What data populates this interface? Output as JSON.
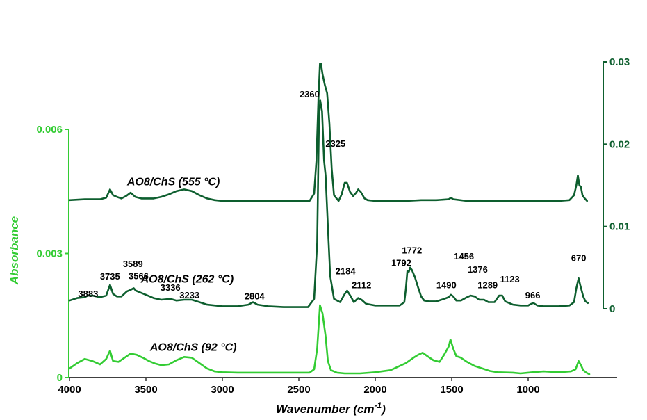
{
  "colors": {
    "light": "#33cc33",
    "dark": "#0d5e2e"
  },
  "chart_data": {
    "type": "line",
    "xlabel_main": "Wavenumber (cm",
    "xlabel_sup": "-1",
    "xlabel_end": ")",
    "ylabel": "Absorbance",
    "xlim": [
      4000,
      600
    ],
    "x_reversed": true,
    "x_ticks": [
      "4000",
      "3500",
      "3000",
      "2500",
      "2000",
      "1500",
      "1000"
    ],
    "left_axis": {
      "range": [
        0,
        0.006
      ],
      "ticks": [
        "0",
        "0.003",
        "0.006"
      ],
      "color": "light"
    },
    "right_axis": {
      "range": [
        0,
        0.03
      ],
      "ticks": [
        "0",
        "0.01",
        "0.02",
        "0.03"
      ],
      "color": "dark"
    },
    "series": [
      {
        "name": "AO8/ChS (92 °C)",
        "axis": "left",
        "color": "light",
        "points": [
          [
            4000,
            0.00022
          ],
          [
            3950,
            0.00035
          ],
          [
            3900,
            0.00045
          ],
          [
            3850,
            0.0004
          ],
          [
            3800,
            0.00032
          ],
          [
            3760,
            0.00045
          ],
          [
            3735,
            0.00065
          ],
          [
            3715,
            0.0004
          ],
          [
            3680,
            0.00038
          ],
          [
            3640,
            0.00048
          ],
          [
            3600,
            0.00058
          ],
          [
            3560,
            0.00055
          ],
          [
            3520,
            0.00048
          ],
          [
            3480,
            0.0004
          ],
          [
            3440,
            0.00034
          ],
          [
            3400,
            0.0003
          ],
          [
            3350,
            0.00032
          ],
          [
            3300,
            0.00042
          ],
          [
            3250,
            0.0005
          ],
          [
            3200,
            0.00048
          ],
          [
            3150,
            0.00035
          ],
          [
            3100,
            0.00022
          ],
          [
            3050,
            0.00015
          ],
          [
            3000,
            0.00013
          ],
          [
            2900,
            0.00012
          ],
          [
            2800,
            0.00012
          ],
          [
            2700,
            0.00012
          ],
          [
            2600,
            0.00012
          ],
          [
            2500,
            0.00012
          ],
          [
            2430,
            0.00012
          ],
          [
            2400,
            0.0002
          ],
          [
            2380,
            0.0007
          ],
          [
            2362,
            0.00175
          ],
          [
            2345,
            0.00155
          ],
          [
            2325,
            0.001
          ],
          [
            2310,
            0.0004
          ],
          [
            2290,
            0.00018
          ],
          [
            2250,
            0.00012
          ],
          [
            2200,
            0.0001
          ],
          [
            2100,
            0.0001
          ],
          [
            2000,
            0.00013
          ],
          [
            1900,
            0.00018
          ],
          [
            1800,
            0.00035
          ],
          [
            1750,
            0.00048
          ],
          [
            1720,
            0.00055
          ],
          [
            1690,
            0.0006
          ],
          [
            1660,
            0.00052
          ],
          [
            1620,
            0.00042
          ],
          [
            1580,
            0.00038
          ],
          [
            1550,
            0.00055
          ],
          [
            1520,
            0.00075
          ],
          [
            1508,
            0.00092
          ],
          [
            1490,
            0.0007
          ],
          [
            1470,
            0.00052
          ],
          [
            1440,
            0.00048
          ],
          [
            1400,
            0.00038
          ],
          [
            1350,
            0.00028
          ],
          [
            1300,
            0.00022
          ],
          [
            1250,
            0.00016
          ],
          [
            1200,
            0.00013
          ],
          [
            1100,
            0.00012
          ],
          [
            1050,
            0.0001
          ],
          [
            1000,
            0.00012
          ],
          [
            900,
            0.00015
          ],
          [
            800,
            0.00013
          ],
          [
            720,
            0.00015
          ],
          [
            690,
            0.0002
          ],
          [
            670,
            0.0004
          ],
          [
            655,
            0.0003
          ],
          [
            640,
            0.00018
          ],
          [
            620,
            0.00012
          ],
          [
            600,
            8e-05
          ]
        ]
      },
      {
        "name": "AO8/ChS (262 °C)",
        "axis": "right",
        "color": "dark",
        "points": [
          [
            4000,
            0.001
          ],
          [
            3950,
            0.0013
          ],
          [
            3900,
            0.0014
          ],
          [
            3880,
            0.0016
          ],
          [
            3850,
            0.0016
          ],
          [
            3800,
            0.0014
          ],
          [
            3760,
            0.0016
          ],
          [
            3735,
            0.0029
          ],
          [
            3715,
            0.0018
          ],
          [
            3690,
            0.0015
          ],
          [
            3660,
            0.0015
          ],
          [
            3625,
            0.0021
          ],
          [
            3600,
            0.0023
          ],
          [
            3580,
            0.0025
          ],
          [
            3566,
            0.0022
          ],
          [
            3540,
            0.002
          ],
          [
            3500,
            0.0017
          ],
          [
            3450,
            0.0013
          ],
          [
            3400,
            0.0011
          ],
          [
            3340,
            0.0012
          ],
          [
            3300,
            0.001
          ],
          [
            3250,
            0.0011
          ],
          [
            3200,
            0.0011
          ],
          [
            3150,
            0.0008
          ],
          [
            3100,
            0.0005
          ],
          [
            3000,
            0.0003
          ],
          [
            2900,
            0.0003
          ],
          [
            2830,
            0.0005
          ],
          [
            2800,
            0.0008
          ],
          [
            2770,
            0.0005
          ],
          [
            2700,
            0.0003
          ],
          [
            2600,
            0.0002
          ],
          [
            2500,
            0.0002
          ],
          [
            2440,
            0.0002
          ],
          [
            2400,
            0.0012
          ],
          [
            2380,
            0.008
          ],
          [
            2368,
            0.0232
          ],
          [
            2360,
            0.0253
          ],
          [
            2348,
            0.024
          ],
          [
            2335,
            0.018
          ],
          [
            2325,
            0.0162
          ],
          [
            2310,
            0.01
          ],
          [
            2295,
            0.004
          ],
          [
            2270,
            0.0012
          ],
          [
            2230,
            0.0008
          ],
          [
            2200,
            0.0018
          ],
          [
            2184,
            0.0022
          ],
          [
            2160,
            0.0015
          ],
          [
            2140,
            0.0008
          ],
          [
            2112,
            0.0013
          ],
          [
            2090,
            0.0011
          ],
          [
            2060,
            0.0006
          ],
          [
            2000,
            0.0004
          ],
          [
            1900,
            0.0004
          ],
          [
            1840,
            0.0004
          ],
          [
            1810,
            0.0008
          ],
          [
            1800,
            0.0024
          ],
          [
            1790,
            0.0046
          ],
          [
            1780,
            0.0045
          ],
          [
            1772,
            0.005
          ],
          [
            1760,
            0.0047
          ],
          [
            1740,
            0.0038
          ],
          [
            1720,
            0.0026
          ],
          [
            1700,
            0.0015
          ],
          [
            1680,
            0.001
          ],
          [
            1650,
            0.0009
          ],
          [
            1600,
            0.0009
          ],
          [
            1550,
            0.0012
          ],
          [
            1520,
            0.0014
          ],
          [
            1505,
            0.0017
          ],
          [
            1490,
            0.0015
          ],
          [
            1470,
            0.001
          ],
          [
            1440,
            0.001
          ],
          [
            1400,
            0.0014
          ],
          [
            1376,
            0.0016
          ],
          [
            1350,
            0.0015
          ],
          [
            1320,
            0.0011
          ],
          [
            1289,
            0.0011
          ],
          [
            1260,
            0.0008
          ],
          [
            1220,
            0.0008
          ],
          [
            1190,
            0.0016
          ],
          [
            1170,
            0.0016
          ],
          [
            1150,
            0.0009
          ],
          [
            1100,
            0.0005
          ],
          [
            1050,
            0.0004
          ],
          [
            1000,
            0.0004
          ],
          [
            980,
            0.0006
          ],
          [
            966,
            0.0007
          ],
          [
            940,
            0.0004
          ],
          [
            900,
            0.0003
          ],
          [
            800,
            0.0003
          ],
          [
            730,
            0.0004
          ],
          [
            700,
            0.0008
          ],
          [
            685,
            0.0025
          ],
          [
            670,
            0.0037
          ],
          [
            660,
            0.0029
          ],
          [
            650,
            0.0022
          ],
          [
            640,
            0.0015
          ],
          [
            625,
            0.0009
          ],
          [
            610,
            0.0007
          ]
        ]
      },
      {
        "name": "AO8/ChS (555 °C)",
        "axis": "right",
        "color": "dark",
        "points": [
          [
            4000,
            0.0132
          ],
          [
            3900,
            0.0133
          ],
          [
            3800,
            0.0133
          ],
          [
            3760,
            0.0135
          ],
          [
            3735,
            0.0145
          ],
          [
            3715,
            0.0138
          ],
          [
            3690,
            0.0136
          ],
          [
            3660,
            0.0134
          ],
          [
            3630,
            0.0137
          ],
          [
            3600,
            0.0141
          ],
          [
            3570,
            0.0136
          ],
          [
            3530,
            0.0134
          ],
          [
            3450,
            0.0134
          ],
          [
            3400,
            0.0136
          ],
          [
            3350,
            0.0139
          ],
          [
            3300,
            0.0143
          ],
          [
            3250,
            0.0145
          ],
          [
            3200,
            0.0143
          ],
          [
            3150,
            0.0138
          ],
          [
            3100,
            0.0134
          ],
          [
            3050,
            0.0132
          ],
          [
            3000,
            0.0131
          ],
          [
            2900,
            0.0131
          ],
          [
            2800,
            0.0131
          ],
          [
            2700,
            0.0131
          ],
          [
            2600,
            0.0131
          ],
          [
            2500,
            0.0131
          ],
          [
            2430,
            0.0131
          ],
          [
            2400,
            0.014
          ],
          [
            2385,
            0.018
          ],
          [
            2372,
            0.0255
          ],
          [
            2362,
            0.0298
          ],
          [
            2355,
            0.0298
          ],
          [
            2345,
            0.0285
          ],
          [
            2330,
            0.0272
          ],
          [
            2315,
            0.0262
          ],
          [
            2300,
            0.0225
          ],
          [
            2285,
            0.017
          ],
          [
            2270,
            0.0138
          ],
          [
            2240,
            0.0131
          ],
          [
            2220,
            0.0139
          ],
          [
            2200,
            0.0153
          ],
          [
            2185,
            0.0153
          ],
          [
            2165,
            0.0142
          ],
          [
            2145,
            0.0137
          ],
          [
            2125,
            0.0141
          ],
          [
            2112,
            0.0145
          ],
          [
            2095,
            0.0142
          ],
          [
            2070,
            0.0134
          ],
          [
            2050,
            0.0132
          ],
          [
            2000,
            0.0131
          ],
          [
            1900,
            0.0131
          ],
          [
            1800,
            0.0131
          ],
          [
            1700,
            0.0132
          ],
          [
            1600,
            0.0132
          ],
          [
            1520,
            0.0133
          ],
          [
            1505,
            0.0135
          ],
          [
            1490,
            0.0133
          ],
          [
            1400,
            0.0131
          ],
          [
            1300,
            0.0131
          ],
          [
            1200,
            0.0131
          ],
          [
            1100,
            0.0131
          ],
          [
            1000,
            0.0131
          ],
          [
            900,
            0.0131
          ],
          [
            800,
            0.0131
          ],
          [
            730,
            0.0132
          ],
          [
            700,
            0.0138
          ],
          [
            685,
            0.015
          ],
          [
            675,
            0.0162
          ],
          [
            665,
            0.015
          ],
          [
            655,
            0.0148
          ],
          [
            645,
            0.0138
          ],
          [
            630,
            0.0134
          ],
          [
            615,
            0.0131
          ]
        ]
      }
    ],
    "series_labels": [
      {
        "text": "AO8/ChS (555 °C)",
        "x": 3320,
        "axis": "right",
        "y": 0.015
      },
      {
        "text": "AO8/ChS (262 °C)",
        "x": 3230,
        "axis": "right",
        "y": 0.00315
      },
      {
        "text": "AO8/ChS (92 °C)",
        "x": 3190,
        "axis": "left",
        "y": 0.00065
      }
    ],
    "peak_labels": [
      {
        "text": "2360",
        "x": 2430,
        "axis": "right",
        "y": 0.0257
      },
      {
        "text": "2325",
        "x": 2260,
        "axis": "right",
        "y": 0.0197
      },
      {
        "text": "3883",
        "x": 3878,
        "axis": "right",
        "y": 0.00145
      },
      {
        "text": "3735",
        "x": 3735,
        "axis": "right",
        "y": 0.00355
      },
      {
        "text": "3589",
        "x": 3585,
        "axis": "right",
        "y": 0.00505
      },
      {
        "text": "3566",
        "x": 3548,
        "axis": "right",
        "y": 0.0036
      },
      {
        "text": "3336",
        "x": 3340,
        "axis": "right",
        "y": 0.0022
      },
      {
        "text": "3233",
        "x": 3215,
        "axis": "right",
        "y": 0.00125
      },
      {
        "text": "2804",
        "x": 2790,
        "axis": "right",
        "y": 0.00115
      },
      {
        "text": "2184",
        "x": 2195,
        "axis": "right",
        "y": 0.0042
      },
      {
        "text": "2112",
        "x": 2090,
        "axis": "right",
        "y": 0.0025
      },
      {
        "text": "1792",
        "x": 1830,
        "axis": "right",
        "y": 0.0052
      },
      {
        "text": "1772",
        "x": 1760,
        "axis": "right",
        "y": 0.0067
      },
      {
        "text": "1490",
        "x": 1535,
        "axis": "right",
        "y": 0.0025
      },
      {
        "text": "1456",
        "x": 1420,
        "axis": "right",
        "y": 0.006
      },
      {
        "text": "1376",
        "x": 1330,
        "axis": "right",
        "y": 0.0044
      },
      {
        "text": "1289",
        "x": 1265,
        "axis": "right",
        "y": 0.0025
      },
      {
        "text": "1123",
        "x": 1120,
        "axis": "right",
        "y": 0.0032
      },
      {
        "text": "966",
        "x": 970,
        "axis": "right",
        "y": 0.00125
      },
      {
        "text": "670",
        "x": 670,
        "axis": "right",
        "y": 0.0058
      }
    ]
  }
}
